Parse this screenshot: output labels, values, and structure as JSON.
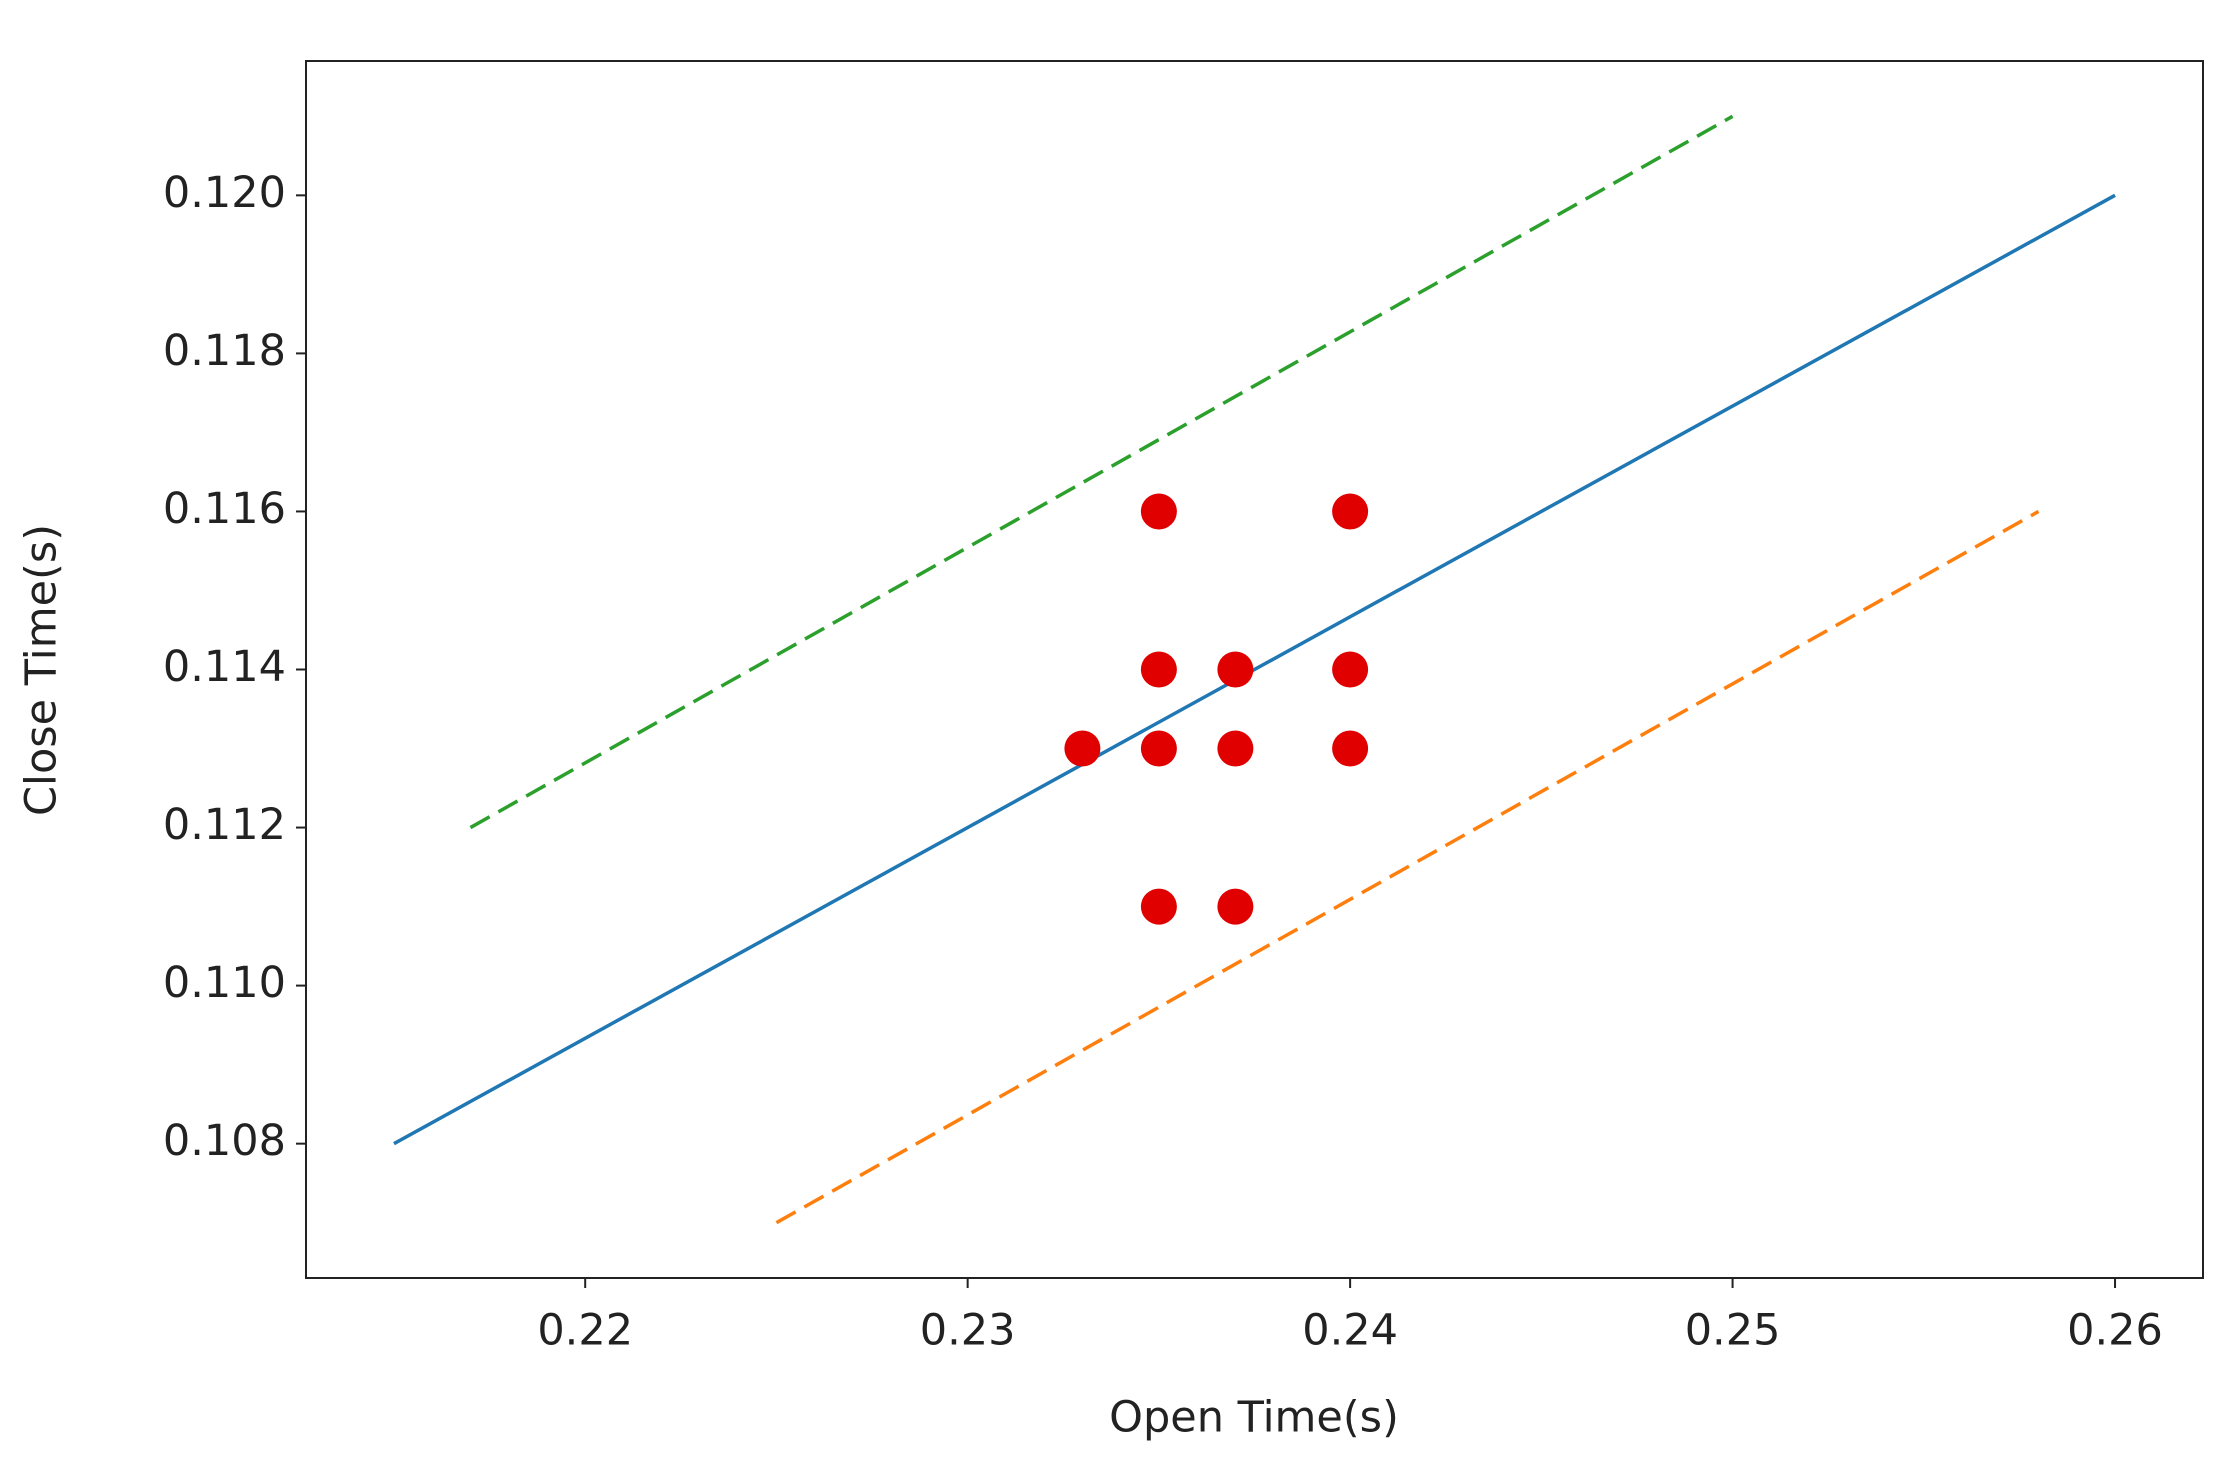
{
  "chart_data": {
    "type": "scatter",
    "x_label": "Open Time(s)",
    "y_label": "Close Time(s)",
    "xlim": [
      0.2127,
      0.2623
    ],
    "ylim": [
      0.1063,
      0.1217
    ],
    "xticks": [
      0.22,
      0.23,
      0.24,
      0.25,
      0.26
    ],
    "yticks": [
      0.108,
      {
        "value": 0.11,
        "label": "0.110"
      },
      0.112,
      0.114,
      0.116,
      0.118,
      {
        "value": 0.12,
        "label": "0.120"
      }
    ],
    "series": [
      {
        "type": "line",
        "color": "#1f77b4",
        "dashed": false,
        "x": [
          0.215,
          0.26
        ],
        "values": [
          0.108,
          0.12
        ]
      },
      {
        "type": "line",
        "color": "#ff7f0e",
        "dashed": true,
        "x": [
          0.225,
          0.258
        ],
        "values": [
          0.107,
          0.116
        ]
      },
      {
        "type": "line",
        "color": "#2ca02c",
        "dashed": true,
        "x": [
          0.217,
          0.25
        ],
        "values": [
          0.112,
          0.121
        ]
      },
      {
        "type": "scatter",
        "color": "#e00000",
        "x": [
          0.235,
          0.24,
          0.235,
          0.237,
          0.24,
          0.233,
          0.235,
          0.237,
          0.24,
          0.235,
          0.237
        ],
        "values": [
          0.116,
          0.116,
          0.114,
          0.114,
          0.114,
          0.113,
          0.113,
          0.113,
          0.113,
          0.111,
          0.111
        ]
      }
    ]
  }
}
